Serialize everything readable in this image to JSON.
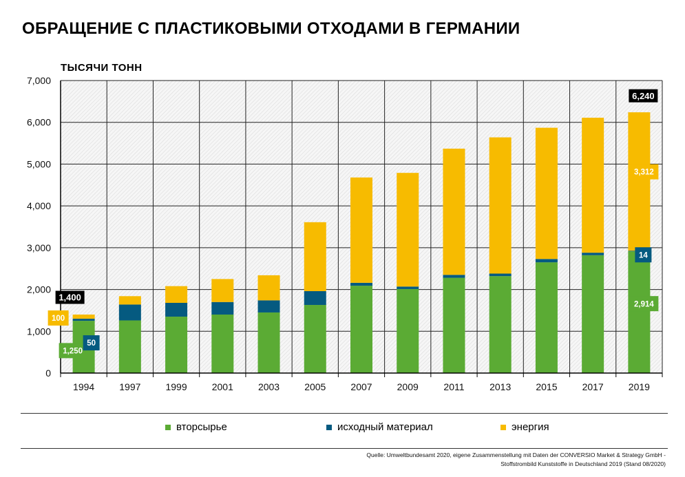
{
  "title": "ОБРАЩЕНИЕ С ПЛАСТИКОВЫМИ ОТХОДАМИ В ГЕРМАНИИ",
  "colors": {
    "recycling": "#5bab34",
    "feedstock": "#055a80",
    "energy": "#f7bb00"
  },
  "legend": [
    {
      "label": "вторсырье",
      "color": "#5bab34"
    },
    {
      "label": "исходный материал",
      "color": "#055a80"
    },
    {
      "label": "энергия",
      "color": "#f7bb00"
    }
  ],
  "source": {
    "line1": "Quelle: Umweltbundesamt 2020, eigene Zusammenstellung mit Daten der CONVERSIO Market & Strategy GmbH -",
    "line2": "Stoffstrombild Kunststoffe in Deutschland 2019 (Stand 08/2020)"
  },
  "chart_data": {
    "type": "bar",
    "stacked": true,
    "title": "ОБРАЩЕНИЕ С ПЛАСТИКОВЫМИ ОТХОДАМИ В ГЕРМАНИИ",
    "ylabel": "ТЫСЯЧИ ТОНН",
    "xlabel": "",
    "ylim": [
      0,
      7000
    ],
    "yticks": [
      "0",
      "1,000",
      "2,000",
      "3,000",
      "4,000",
      "5,000",
      "6,000",
      "7,000"
    ],
    "grid": true,
    "legend_position": "bottom",
    "categories": [
      "1994",
      "1997",
      "1999",
      "2001",
      "2003",
      "2005",
      "2007",
      "2009",
      "2011",
      "2013",
      "2015",
      "2017",
      "2019"
    ],
    "series": [
      {
        "name": "вторсырье",
        "color": "#5bab34",
        "values": [
          1250,
          1260,
          1350,
          1400,
          1450,
          1630,
          2090,
          2010,
          2280,
          2320,
          2650,
          2820,
          2914
        ]
      },
      {
        "name": "исходный материал",
        "color": "#055a80",
        "values": [
          50,
          380,
          330,
          300,
          290,
          330,
          70,
          60,
          70,
          60,
          80,
          60,
          14
        ]
      },
      {
        "name": "энергия",
        "color": "#f7bb00",
        "values": [
          100,
          200,
          400,
          550,
          600,
          1650,
          2520,
          2720,
          3020,
          3260,
          3140,
          3230,
          3312
        ]
      }
    ],
    "annotations": [
      {
        "category": "1994",
        "series": "вторсырье",
        "text": "1,250"
      },
      {
        "category": "1994",
        "series": "исходный материал",
        "text": "50"
      },
      {
        "category": "1994",
        "series": "энергия",
        "text": "100"
      },
      {
        "category": "1994",
        "total": true,
        "text": "1,400"
      },
      {
        "category": "2019",
        "series": "вторсырье",
        "text": "2,914"
      },
      {
        "category": "2019",
        "series": "исходный материал",
        "text": "14"
      },
      {
        "category": "2019",
        "series": "энергия",
        "text": "3,312"
      },
      {
        "category": "2019",
        "total": true,
        "text": "6,240"
      }
    ]
  }
}
